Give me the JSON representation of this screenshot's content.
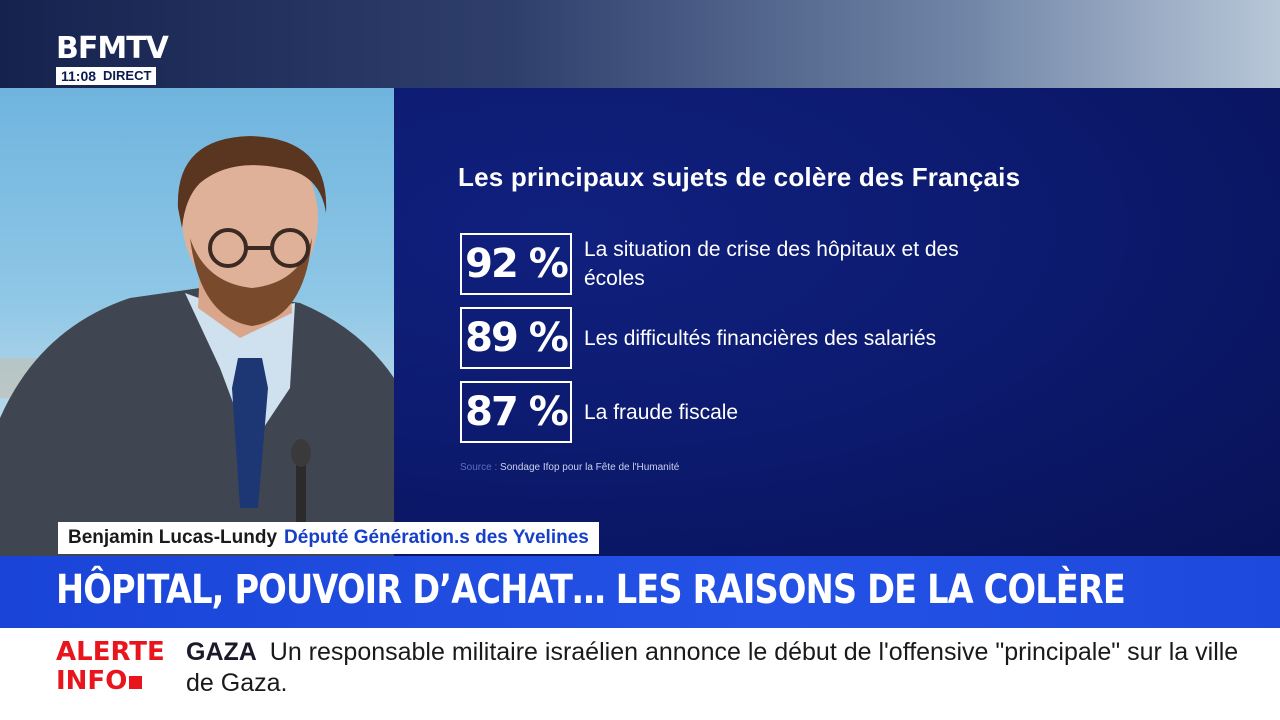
{
  "logo": {
    "brand": "BFMTV",
    "time": "11:08",
    "live_label": "DIRECT"
  },
  "infographic": {
    "title": "Les principaux sujets de colère des Français",
    "stats": [
      {
        "value": "92 %",
        "label": "La situation de crise des hôpitaux et des écoles"
      },
      {
        "value": "89 %",
        "label": "Les difficultés financières des salariés"
      },
      {
        "value": "87 %",
        "label": "La fraude fiscale"
      }
    ],
    "source_key": "Source :",
    "source_text": "Sondage Ifop pour la Fête de l'Humanité"
  },
  "name_tag": {
    "name": "Benjamin Lucas-Lundy",
    "role": "Député Génération.s des Yvelines"
  },
  "headline": "HÔPITAL, POUVOIR D’ACHAT… LES RAISONS DE LA COLÈRE",
  "alert": {
    "label_line1": "ALERTE",
    "label_line2": "INFO",
    "topic": "GAZA",
    "text": "Un responsable militaire israélien annonce le début de l'offensive \"principale\" sur la ville de Gaza."
  },
  "colors": {
    "panel_blue": "#0c1a6e",
    "headline_blue": "#2452e6",
    "alert_red": "#e8161c",
    "role_blue": "#1740c8"
  }
}
